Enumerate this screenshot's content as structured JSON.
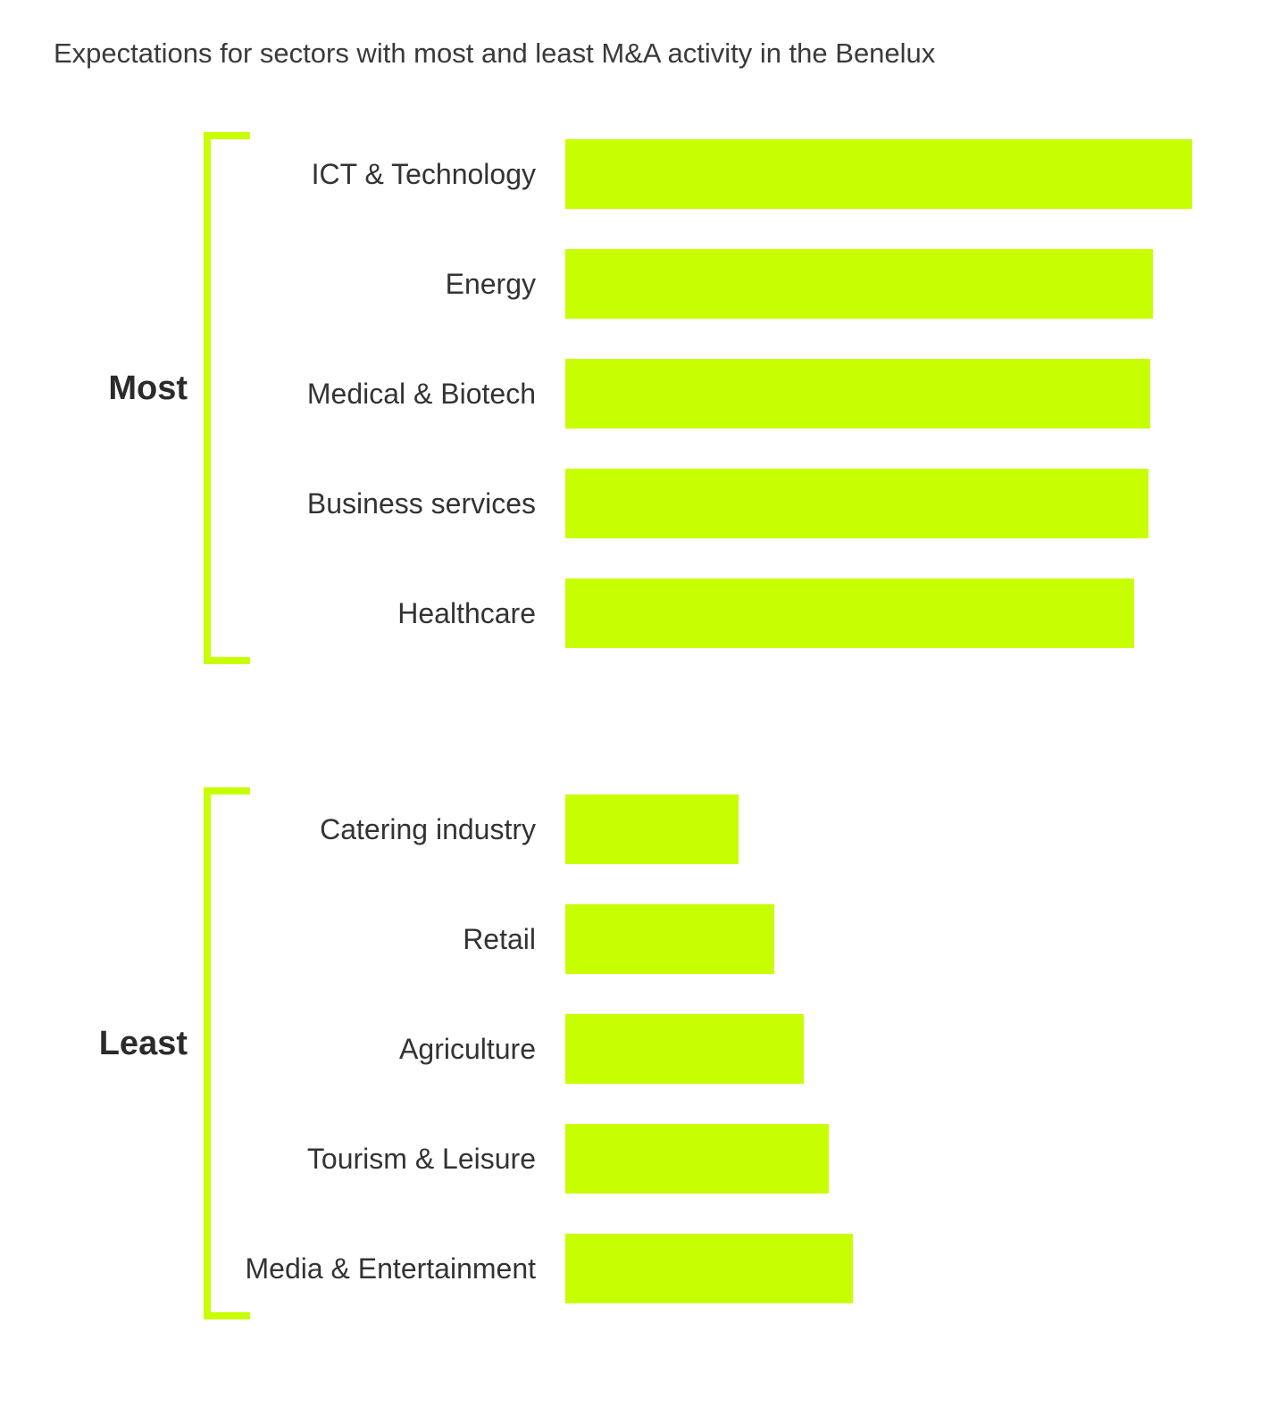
{
  "chart_data": {
    "type": "bar",
    "orientation": "horizontal",
    "title": "Expectations for sectors with most and least M&A activity in the Benelux",
    "bar_color": "#c8ff00",
    "groups": [
      {
        "label": "Most",
        "categories": [
          "ICT & Technology",
          "Energy",
          "Medical & Biotech",
          "Business services",
          "Healthcare"
        ],
        "values": [
          100,
          93.7,
          93.3,
          93,
          90.7
        ]
      },
      {
        "label": "Least",
        "categories": [
          "Catering industry",
          "Retail",
          "Agriculture",
          "Tourism & Leisure",
          "Media & Entertainment"
        ],
        "values": [
          27.7,
          33.3,
          38,
          42,
          45.8
        ]
      }
    ],
    "xlim": [
      0,
      100
    ],
    "grid": false,
    "legend": false
  }
}
